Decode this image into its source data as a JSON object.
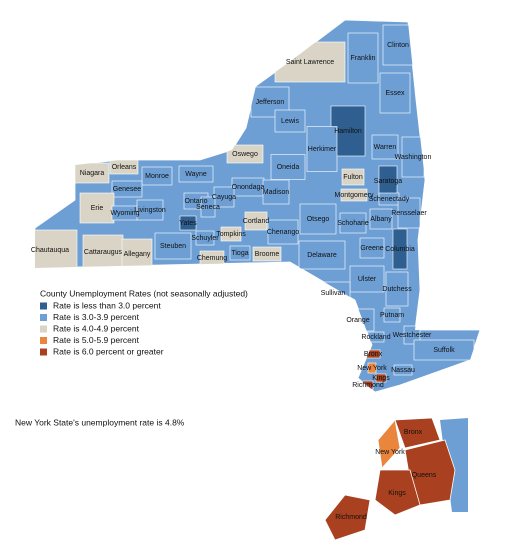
{
  "map": {
    "counties": [
      {
        "name": "Saint Lawrence",
        "color": "#d9d4c5"
      },
      {
        "name": "Franklin",
        "color": "#6d9fd5"
      },
      {
        "name": "Clinton",
        "color": "#6d9fd5"
      },
      {
        "name": "Essex",
        "color": "#6d9fd5"
      },
      {
        "name": "Jefferson",
        "color": "#6d9fd5"
      },
      {
        "name": "Lewis",
        "color": "#6d9fd5"
      },
      {
        "name": "Hamilton",
        "color": "#2f5f91"
      },
      {
        "name": "Warren",
        "color": "#6d9fd5"
      },
      {
        "name": "Washington",
        "color": "#6d9fd5"
      },
      {
        "name": "Herkimer",
        "color": "#6d9fd5"
      },
      {
        "name": "Oswego",
        "color": "#d9d4c5"
      },
      {
        "name": "Oneida",
        "color": "#6d9fd5"
      },
      {
        "name": "Niagara",
        "color": "#d9d4c5"
      },
      {
        "name": "Orleans",
        "color": "#d9d4c5"
      },
      {
        "name": "Monroe",
        "color": "#6d9fd5"
      },
      {
        "name": "Wayne",
        "color": "#6d9fd5"
      },
      {
        "name": "Genesee",
        "color": "#6d9fd5"
      },
      {
        "name": "Onondaga",
        "color": "#6d9fd5"
      },
      {
        "name": "Fulton",
        "color": "#d9d4c5"
      },
      {
        "name": "Saratoga",
        "color": "#2f5f91"
      },
      {
        "name": "Montgomery",
        "color": "#d9d4c5"
      },
      {
        "name": "Schenectady",
        "color": "#6d9fd5"
      },
      {
        "name": "Erie",
        "color": "#d9d4c5"
      },
      {
        "name": "Wyoming",
        "color": "#6d9fd5"
      },
      {
        "name": "Livingston",
        "color": "#6d9fd5"
      },
      {
        "name": "Ontario",
        "color": "#6d9fd5"
      },
      {
        "name": "Cayuga",
        "color": "#6d9fd5"
      },
      {
        "name": "Seneca",
        "color": "#6d9fd5"
      },
      {
        "name": "Madison",
        "color": "#6d9fd5"
      },
      {
        "name": "Otsego",
        "color": "#6d9fd5"
      },
      {
        "name": "Schoharie",
        "color": "#6d9fd5"
      },
      {
        "name": "Albany",
        "color": "#6d9fd5"
      },
      {
        "name": "Rensselaer",
        "color": "#6d9fd5"
      },
      {
        "name": "Yates",
        "color": "#2f5f91"
      },
      {
        "name": "Cortland",
        "color": "#d9d4c5"
      },
      {
        "name": "Chenango",
        "color": "#6d9fd5"
      },
      {
        "name": "Tompkins",
        "color": "#d9d4c5"
      },
      {
        "name": "Schuyler",
        "color": "#6d9fd5"
      },
      {
        "name": "Steuben",
        "color": "#6d9fd5"
      },
      {
        "name": "Greene",
        "color": "#6d9fd5"
      },
      {
        "name": "Columbia",
        "color": "#2f5f91"
      },
      {
        "name": "Chautauqua",
        "color": "#d9d4c5"
      },
      {
        "name": "Cattaraugus",
        "color": "#d9d4c5"
      },
      {
        "name": "Allegany",
        "color": "#d9d4c5"
      },
      {
        "name": "Chemung",
        "color": "#d9d4c5"
      },
      {
        "name": "Tioga",
        "color": "#6d9fd5"
      },
      {
        "name": "Broome",
        "color": "#d9d4c5"
      },
      {
        "name": "Delaware",
        "color": "#6d9fd5"
      },
      {
        "name": "Ulster",
        "color": "#6d9fd5"
      },
      {
        "name": "Dutchess",
        "color": "#6d9fd5"
      },
      {
        "name": "Sullivan",
        "color": "#6d9fd5"
      },
      {
        "name": "Orange",
        "color": "#6d9fd5"
      },
      {
        "name": "Putnam",
        "color": "#6d9fd5"
      },
      {
        "name": "Rockland",
        "color": "#6d9fd5"
      },
      {
        "name": "Westchester",
        "color": "#6d9fd5"
      },
      {
        "name": "Bronx",
        "color": "#a9401f"
      },
      {
        "name": "Suffolk",
        "color": "#6d9fd5"
      },
      {
        "name": "New York",
        "color": "#e9853d"
      },
      {
        "name": "Nassau",
        "color": "#6d9fd5"
      },
      {
        "name": "Kings",
        "color": "#a9401f"
      },
      {
        "name": "Richmond",
        "color": "#a9401f"
      }
    ],
    "inset": [
      {
        "name": "Bronx",
        "color": "#a9401f"
      },
      {
        "name": "New York",
        "color": "#e9853d"
      },
      {
        "name": "Queens",
        "color": "#a9401f"
      },
      {
        "name": "Kings",
        "color": "#a9401f"
      },
      {
        "name": "Richmond",
        "color": "#a9401f"
      }
    ],
    "legend": {
      "title": "County Unemployment Rates (not seasonally adjusted)",
      "items": [
        {
          "label": "Rate is less than 3.0 percent",
          "color": "#2f5f91"
        },
        {
          "label": "Rate is 3.0-3.9 percent",
          "color": "#6d9fd5"
        },
        {
          "label": "Rate is 4.0-4.9 percent",
          "color": "#d9d4c5"
        },
        {
          "label": "Rate is 5.0-5.9 percent",
          "color": "#e9853d"
        },
        {
          "label": "Rate is 6.0 percent or greater",
          "color": "#a9401f"
        }
      ]
    },
    "note": "New York State's unemployment rate is 4.8%"
  }
}
